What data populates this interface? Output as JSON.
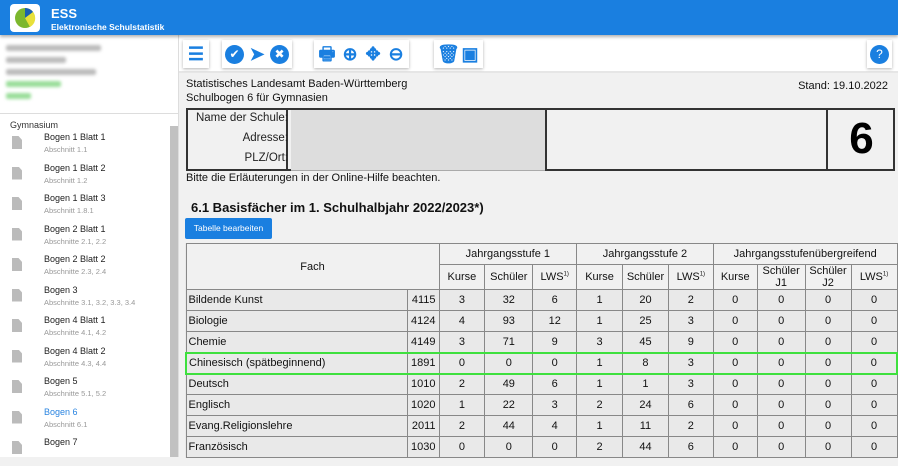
{
  "app": {
    "title": "ESS",
    "subtitle": "Elektronische Schulstatistik"
  },
  "sidebar": {
    "group": "Gymnasium",
    "items": [
      {
        "name": "Bogen 1 Blatt 1",
        "sub": "Abschnitt 1.1"
      },
      {
        "name": "Bogen 1 Blatt 2",
        "sub": "Abschnitt 1.2"
      },
      {
        "name": "Bogen 1 Blatt 3",
        "sub": "Abschnitt 1.8.1"
      },
      {
        "name": "Bogen 2 Blatt 1",
        "sub": "Abschnitte 2.1, 2.2"
      },
      {
        "name": "Bogen 2 Blatt 2",
        "sub": "Abschnitte 2.3, 2.4"
      },
      {
        "name": "Bogen 3",
        "sub": "Abschnitte 3.1, 3.2, 3.3, 3.4"
      },
      {
        "name": "Bogen 4 Blatt 1",
        "sub": "Abschnitte 4.1, 4.2"
      },
      {
        "name": "Bogen 4 Blatt 2",
        "sub": "Abschnitte 4.3, 4.4"
      },
      {
        "name": "Bogen 5",
        "sub": "Abschnitte 5.1, 5.2"
      },
      {
        "name": "Bogen 6",
        "sub": "Abschnitt 6.1",
        "active": true
      },
      {
        "name": "Bogen 7",
        "sub": ""
      }
    ]
  },
  "toolbar": {
    "icons": [
      "menu-icon",
      "check-icon",
      "send-icon",
      "cancel-icon",
      "print-icon",
      "zoom-in-icon",
      "move-icon",
      "zoom-out-icon",
      "delete-icon",
      "save-icon",
      "help-icon"
    ]
  },
  "doc": {
    "org": "Statistisches Landesamt Baden-Württemberg",
    "form": "Schulbogen 6 für Gymnasien",
    "stand": "Stand: 19.10.2022",
    "labels": {
      "name": "Name der Schule:",
      "address": "Adresse:",
      "plz": "PLZ/Ort:"
    },
    "number": "6",
    "hint": "Bitte die Erläuterungen in der Online-Hilfe beachten.",
    "section": "6.1 Basisfächer im 1. Schulhalbjahr 2022/2023*)",
    "edit_button": "Tabelle bearbeiten"
  },
  "table": {
    "fach": "Fach",
    "groups": [
      "Jahrgangsstufe 1",
      "Jahrgangsstufe 2",
      "Jahrgangsstufenübergreifend"
    ],
    "kurse": "Kurse",
    "schueler": "Schüler",
    "lws": "LWS",
    "sup": "1)",
    "j1": "Schüler J1",
    "j2": "Schüler J2",
    "rows": [
      [
        "Bildende Kunst",
        "4115",
        "3",
        "32",
        "6",
        "1",
        "20",
        "2",
        "0",
        "0",
        "0",
        "0"
      ],
      [
        "Biologie",
        "4124",
        "4",
        "93",
        "12",
        "1",
        "25",
        "3",
        "0",
        "0",
        "0",
        "0"
      ],
      [
        "Chemie",
        "4149",
        "3",
        "71",
        "9",
        "3",
        "45",
        "9",
        "0",
        "0",
        "0",
        "0"
      ],
      [
        "Chinesisch (spätbeginnend)",
        "1891",
        "0",
        "0",
        "0",
        "1",
        "8",
        "3",
        "0",
        "0",
        "0",
        "0"
      ],
      [
        "Deutsch",
        "1010",
        "2",
        "49",
        "6",
        "1",
        "1",
        "3",
        "0",
        "0",
        "0",
        "0"
      ],
      [
        "Englisch",
        "1020",
        "1",
        "22",
        "3",
        "2",
        "24",
        "6",
        "0",
        "0",
        "0",
        "0"
      ],
      [
        "Evang.Religionslehre",
        "2011",
        "2",
        "44",
        "4",
        "1",
        "11",
        "2",
        "0",
        "0",
        "0",
        "0"
      ],
      [
        "Französisch",
        "1030",
        "0",
        "0",
        "0",
        "2",
        "44",
        "6",
        "0",
        "0",
        "0",
        "0"
      ]
    ],
    "highlight_row": 3,
    "highlight_color": "#3ee03e"
  },
  "colors": {
    "brand": "#1a7fe0"
  }
}
